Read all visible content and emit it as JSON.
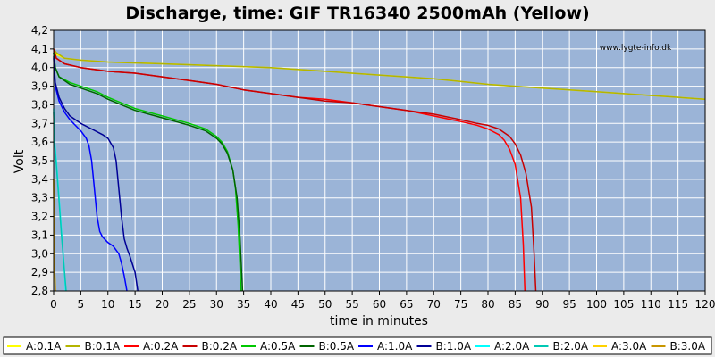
{
  "chart_data": {
    "type": "line",
    "title": "Discharge, time: GIF TR16340 2500mAh (Yellow)",
    "xlabel": "time in minutes",
    "ylabel": "Volt",
    "watermark": "www.lygte-info.dk",
    "xlim": [
      0,
      120
    ],
    "ylim": [
      2.8,
      4.2
    ],
    "x_ticks": [
      "0",
      "5",
      "10",
      "15",
      "20",
      "25",
      "30",
      "35",
      "40",
      "45",
      "50",
      "55",
      "60",
      "65",
      "70",
      "75",
      "80",
      "85",
      "90",
      "95",
      "100",
      "105",
      "110",
      "115",
      "120"
    ],
    "y_ticks": [
      "2,8",
      "2,9",
      "3,0",
      "3,1",
      "3,2",
      "3,3",
      "3,4",
      "3,5",
      "3,6",
      "3,7",
      "3,8",
      "3,9",
      "4,0",
      "4,1",
      "4,2"
    ],
    "grid": true,
    "legend_position": "bottom",
    "series": [
      {
        "name": "A:0.1A",
        "color": "#ffff00",
        "x": [
          0,
          0.5,
          2,
          5,
          10,
          20,
          30,
          40,
          50,
          60,
          70,
          80,
          90,
          100,
          110,
          120
        ],
        "y": [
          4.1,
          4.07,
          4.05,
          4.04,
          4.03,
          4.02,
          4.01,
          4.0,
          3.98,
          3.96,
          3.94,
          3.91,
          3.89,
          3.87,
          3.85,
          3.83
        ]
      },
      {
        "name": "B:0.1A",
        "color": "#b4b400",
        "x": [
          0,
          0.5,
          2,
          5,
          10,
          20,
          30,
          40,
          50,
          60,
          70,
          80,
          90,
          100,
          110,
          120
        ],
        "y": [
          4.1,
          4.08,
          4.05,
          4.04,
          4.03,
          4.02,
          4.01,
          4.0,
          3.98,
          3.96,
          3.94,
          3.91,
          3.89,
          3.87,
          3.85,
          3.83
        ]
      },
      {
        "name": "A:0.2A",
        "color": "#ff0000",
        "x": [
          0,
          0.5,
          2,
          5,
          10,
          15,
          20,
          25,
          30,
          35,
          40,
          45,
          50,
          55,
          60,
          65,
          70,
          75,
          78,
          80,
          82,
          83,
          84,
          85,
          86,
          86.5,
          86.8
        ],
        "y": [
          4.1,
          4.05,
          4.02,
          4.0,
          3.98,
          3.97,
          3.95,
          3.93,
          3.91,
          3.88,
          3.86,
          3.84,
          3.83,
          3.81,
          3.79,
          3.77,
          3.74,
          3.71,
          3.69,
          3.67,
          3.64,
          3.61,
          3.56,
          3.48,
          3.3,
          3.05,
          2.8
        ]
      },
      {
        "name": "B:0.2A",
        "color": "#c80000",
        "x": [
          0,
          0.5,
          2,
          5,
          10,
          15,
          20,
          25,
          30,
          35,
          40,
          45,
          50,
          55,
          60,
          65,
          70,
          75,
          78,
          80,
          82,
          84,
          85,
          86,
          87,
          88,
          88.5,
          88.8
        ],
        "y": [
          4.1,
          4.05,
          4.02,
          4.0,
          3.98,
          3.97,
          3.95,
          3.93,
          3.91,
          3.88,
          3.86,
          3.84,
          3.82,
          3.81,
          3.79,
          3.77,
          3.75,
          3.72,
          3.7,
          3.69,
          3.67,
          3.63,
          3.59,
          3.53,
          3.43,
          3.25,
          3.0,
          2.8
        ]
      },
      {
        "name": "A:0.5A",
        "color": "#00c800",
        "x": [
          0,
          0.3,
          1,
          3,
          5,
          8,
          10,
          15,
          20,
          25,
          28,
          30,
          31,
          32,
          33,
          33.5,
          34,
          34.3,
          34.5
        ],
        "y": [
          4.08,
          4.0,
          3.95,
          3.92,
          3.9,
          3.87,
          3.84,
          3.78,
          3.74,
          3.7,
          3.67,
          3.63,
          3.6,
          3.55,
          3.45,
          3.35,
          3.15,
          2.95,
          2.8
        ]
      },
      {
        "name": "B:0.5A",
        "color": "#006400",
        "x": [
          0,
          0.3,
          1,
          3,
          5,
          8,
          10,
          15,
          20,
          25,
          28,
          30,
          31,
          32,
          33,
          33.8,
          34.3,
          34.6,
          34.8
        ],
        "y": [
          4.08,
          4.0,
          3.95,
          3.91,
          3.89,
          3.86,
          3.83,
          3.77,
          3.73,
          3.69,
          3.66,
          3.62,
          3.59,
          3.54,
          3.45,
          3.3,
          3.1,
          2.92,
          2.8
        ]
      },
      {
        "name": "A:1.0A",
        "color": "#0000ff",
        "x": [
          0,
          0.3,
          1,
          2,
          3,
          4,
          5,
          6,
          6.5,
          7,
          7.5,
          8,
          8.5,
          9,
          10,
          11,
          12,
          12.5,
          13,
          13.5
        ],
        "y": [
          4.05,
          3.9,
          3.82,
          3.76,
          3.72,
          3.69,
          3.66,
          3.62,
          3.58,
          3.5,
          3.35,
          3.2,
          3.12,
          3.09,
          3.06,
          3.04,
          3.0,
          2.95,
          2.88,
          2.8
        ]
      },
      {
        "name": "B:1.0A",
        "color": "#000096",
        "x": [
          0,
          0.3,
          1,
          2,
          3,
          5,
          7,
          9,
          10,
          11,
          11.5,
          12,
          12.5,
          13,
          13.5,
          14,
          15,
          15.5
        ],
        "y": [
          4.06,
          3.92,
          3.84,
          3.78,
          3.74,
          3.7,
          3.67,
          3.64,
          3.62,
          3.57,
          3.5,
          3.35,
          3.2,
          3.08,
          3.03,
          2.99,
          2.9,
          2.8
        ]
      },
      {
        "name": "A:2.0A",
        "color": "#00ffff",
        "x": [
          0,
          0.2,
          0.5,
          1,
          1.5,
          2,
          2.2
        ],
        "y": [
          3.78,
          3.6,
          3.5,
          3.3,
          3.1,
          2.9,
          2.8
        ]
      },
      {
        "name": "B:2.0A",
        "color": "#00c8b4",
        "x": [
          0,
          0.2,
          0.5,
          1,
          1.5,
          2,
          2.3
        ],
        "y": [
          3.76,
          3.58,
          3.48,
          3.28,
          3.08,
          2.9,
          2.8
        ]
      },
      {
        "name": "A:3.0A",
        "color": "#ffd200",
        "x": [
          0,
          0.1,
          0.2,
          0.3
        ],
        "y": [
          3.4,
          3.1,
          2.9,
          2.8
        ]
      },
      {
        "name": "B:3.0A",
        "color": "#c89600",
        "x": [
          0,
          0.1,
          0.2,
          0.35
        ],
        "y": [
          3.4,
          3.1,
          2.9,
          2.8
        ]
      }
    ]
  }
}
